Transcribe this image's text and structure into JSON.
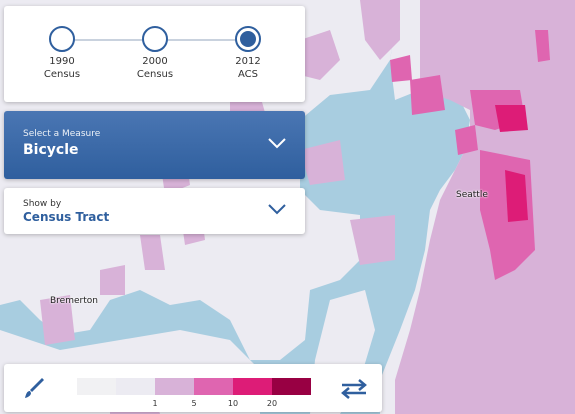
{
  "timeline": {
    "steps": [
      {
        "line1": "1990",
        "line2": "Census",
        "active": false
      },
      {
        "line1": "2000",
        "line2": "Census",
        "active": false
      },
      {
        "line1": "2012",
        "line2": "ACS",
        "active": true
      }
    ]
  },
  "measure": {
    "label": "Select a Measure",
    "value": "Bicycle"
  },
  "show_by": {
    "label": "Show by",
    "value": "Census Tract"
  },
  "legend": {
    "colors": [
      "#f1f1f3",
      "#ecebf2",
      "#d8b2d8",
      "#df65b0",
      "#dd1c77",
      "#980043"
    ],
    "ticks": [
      "1",
      "5",
      "10",
      "20"
    ]
  },
  "map": {
    "cities": [
      {
        "name": "Seattle"
      },
      {
        "name": "Bremerton"
      }
    ],
    "colors": {
      "water": "#a8cde0",
      "land": "#ecebf2",
      "low": "#d8b2d8",
      "mid": "#df65b0",
      "high": "#dd1c77",
      "top": "#c51b7d"
    }
  },
  "icons": {
    "brush": "brush-icon",
    "swap": "swap-icon",
    "dropdown": "chevron-down-icon"
  }
}
